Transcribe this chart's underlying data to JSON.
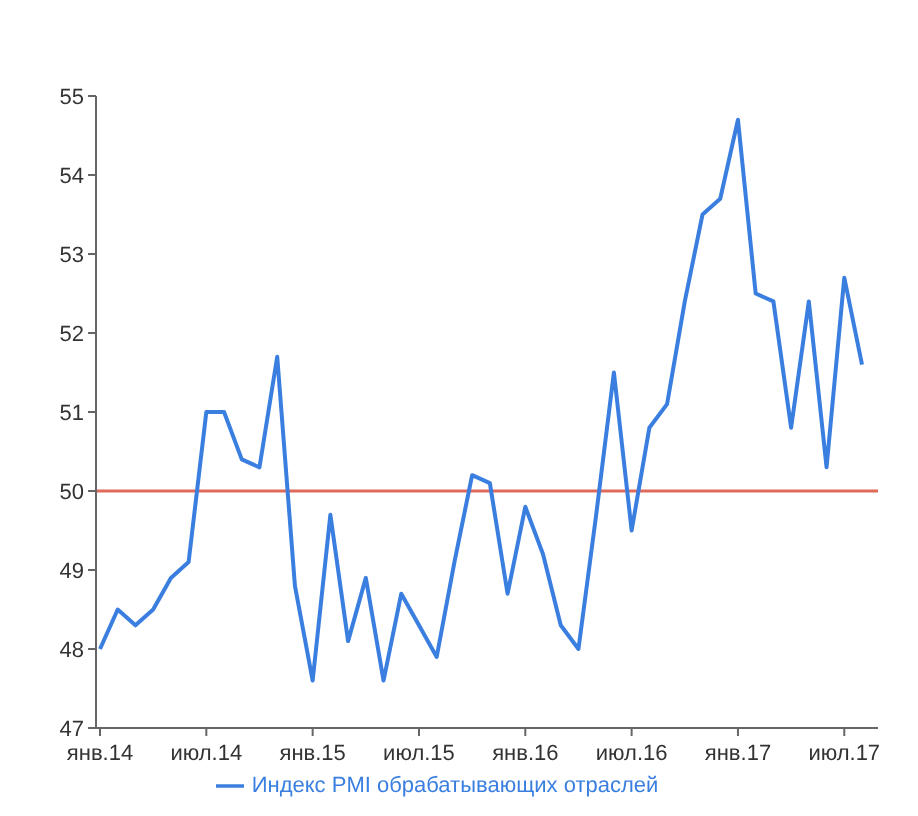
{
  "chart_data": {
    "type": "line",
    "categories": [
      "янв.14",
      null,
      null,
      null,
      null,
      null,
      "июл.14",
      null,
      null,
      null,
      null,
      null,
      "янв.15",
      null,
      null,
      null,
      null,
      null,
      "июл.15",
      null,
      null,
      null,
      null,
      null,
      "янв.16",
      null,
      null,
      null,
      null,
      null,
      "июл.16",
      null,
      null,
      null,
      null,
      null,
      "янв.17",
      null,
      null,
      null,
      null,
      null,
      "июл.17",
      null
    ],
    "series": [
      {
        "name": "Индекс PMI обрабатывающих отраслей",
        "color": "#3a7fe0",
        "values": [
          48.0,
          48.5,
          48.3,
          48.5,
          48.9,
          49.1,
          51.0,
          51.0,
          50.4,
          50.3,
          51.7,
          48.8,
          47.6,
          49.7,
          48.1,
          48.9,
          47.6,
          48.7,
          48.3,
          47.9,
          49.1,
          50.2,
          50.1,
          48.7,
          49.8,
          49.2,
          48.3,
          48.0,
          49.7,
          51.5,
          49.5,
          50.8,
          51.1,
          52.4,
          53.5,
          53.7,
          54.7,
          52.5,
          52.4,
          50.8,
          52.4,
          50.3,
          52.7,
          51.6
        ]
      }
    ],
    "ylim": [
      47,
      55
    ],
    "yticks": [
      47,
      48,
      49,
      50,
      51,
      52,
      53,
      54,
      55
    ],
    "ref_lines": [
      {
        "axis": "y",
        "value": 50,
        "color": "#e06a5a"
      }
    ],
    "grid": false,
    "legend": "bottom",
    "marker": "none",
    "line_style": "solid"
  }
}
